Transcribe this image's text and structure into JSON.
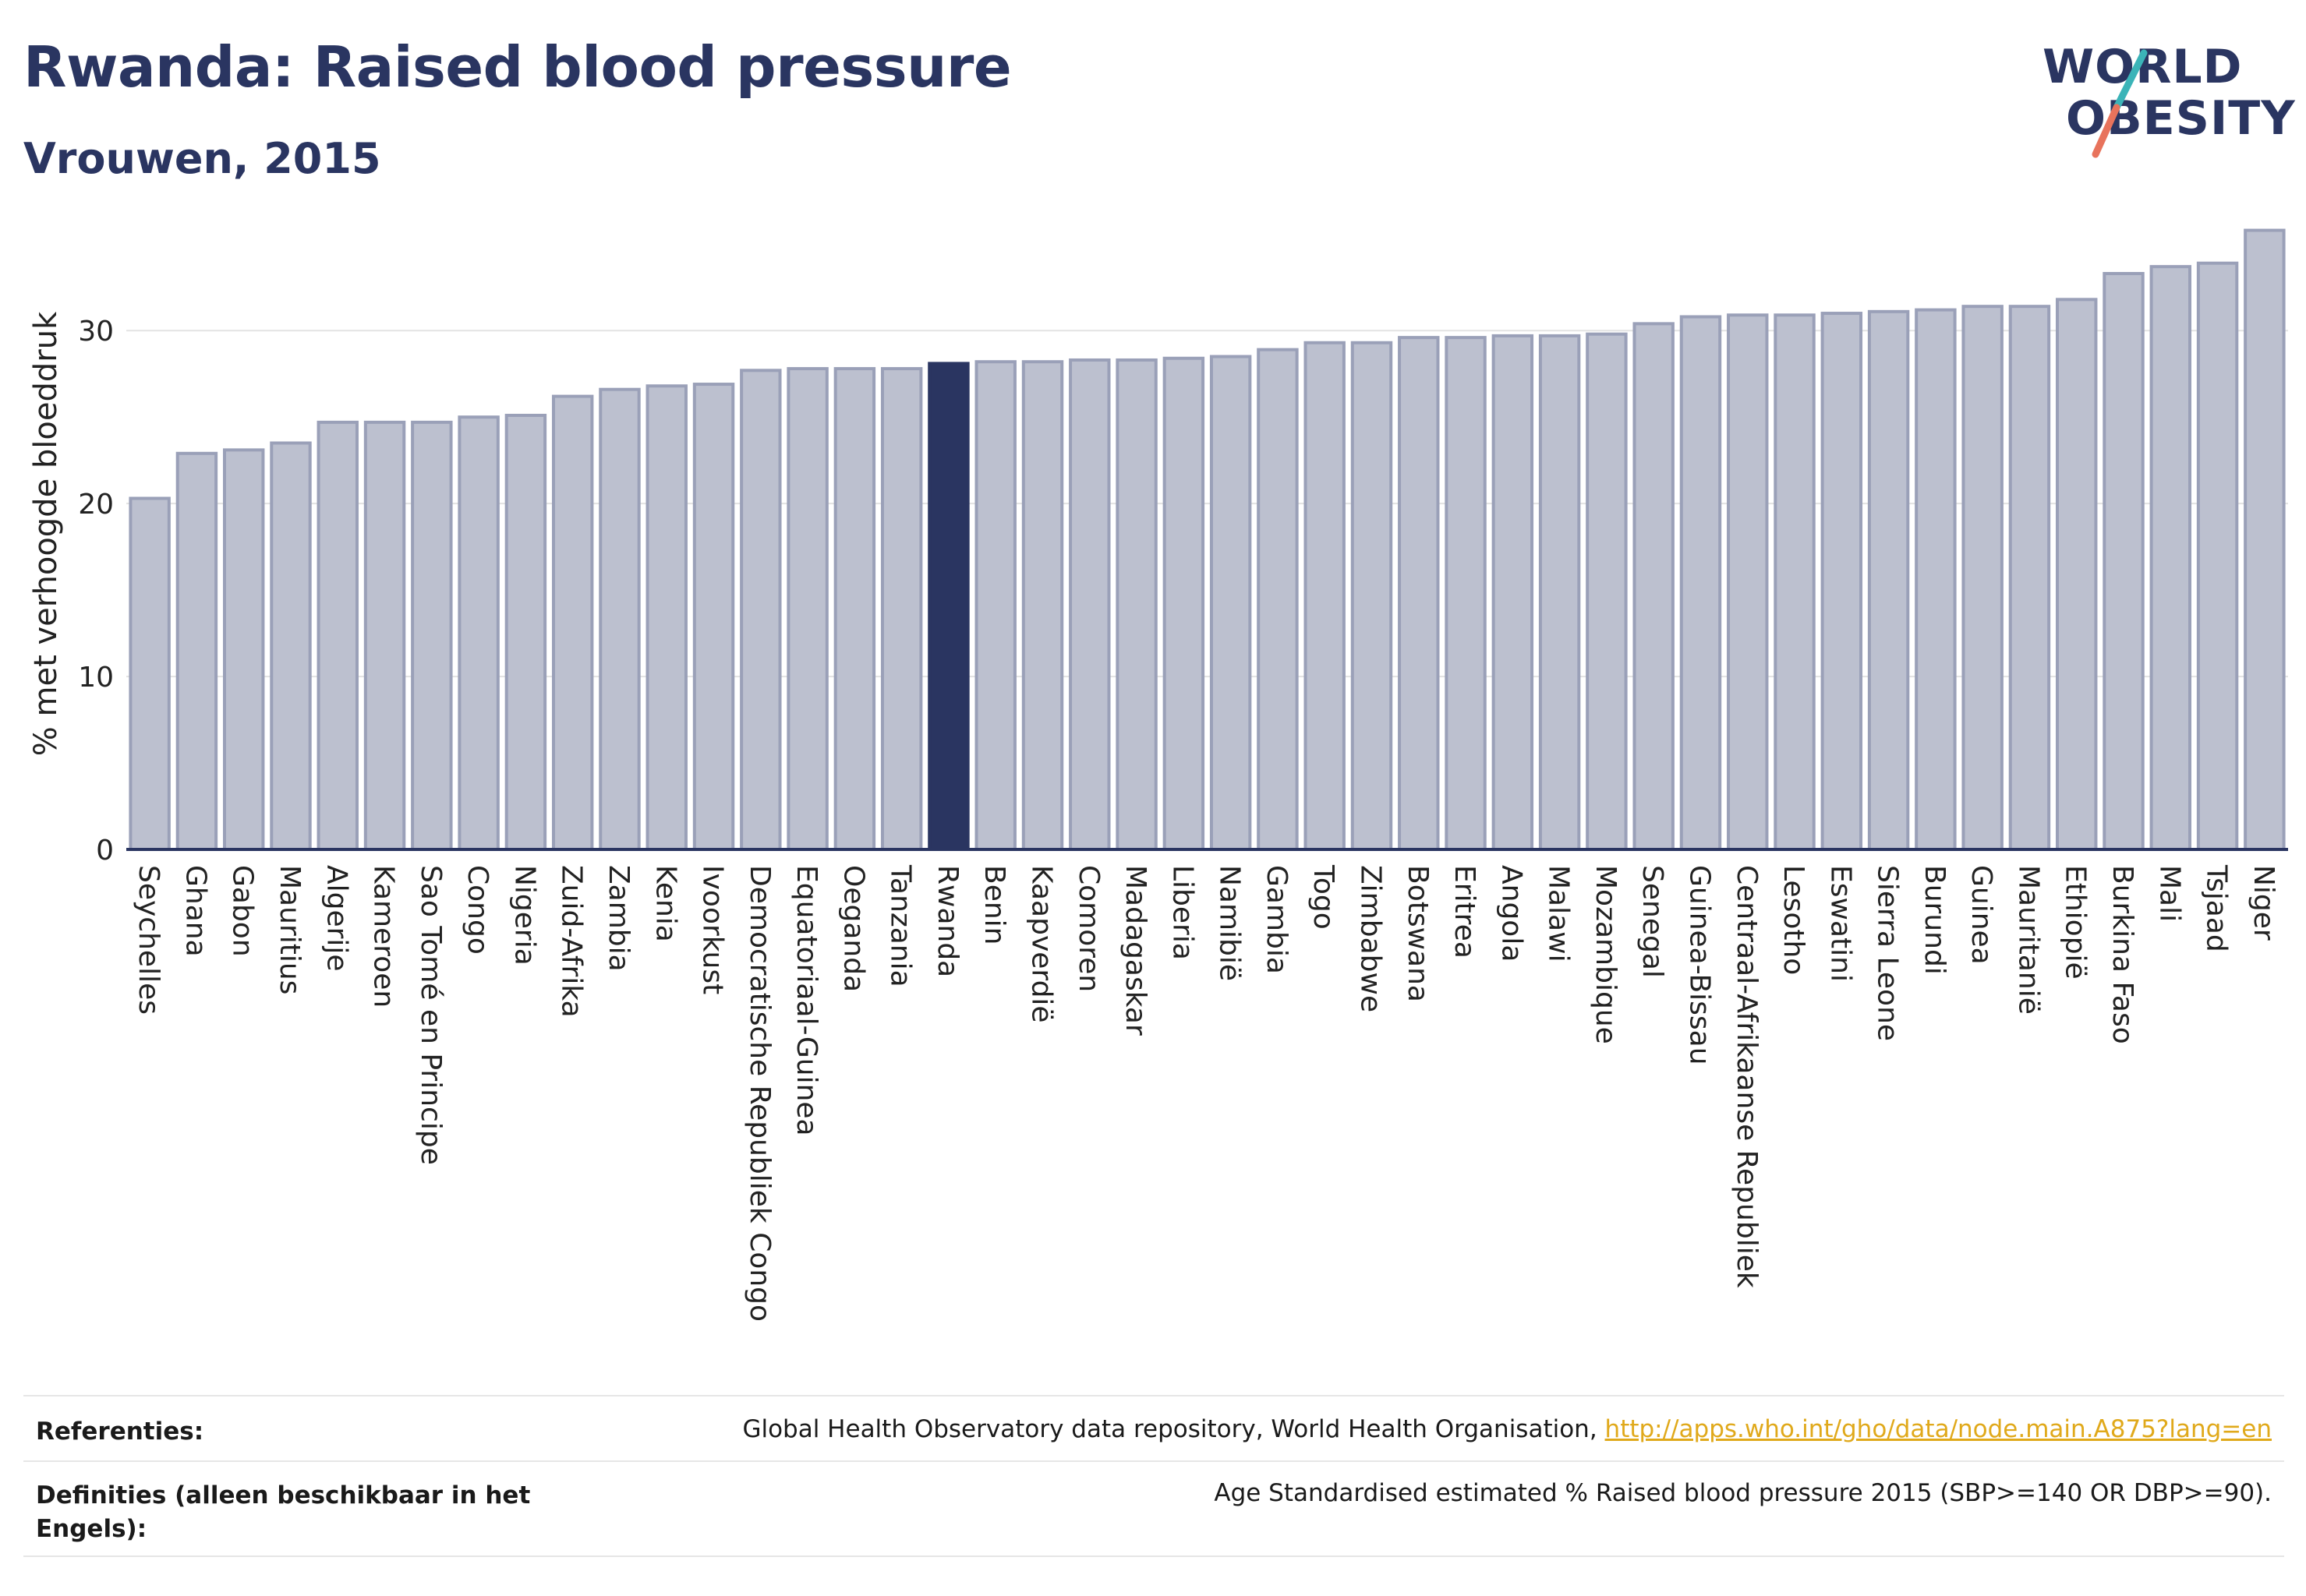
{
  "header": {
    "title": "Rwanda: Raised blood pressure",
    "subtitle": "Vrouwen, 2015"
  },
  "logo": {
    "line1": "WORLD",
    "line2": "OBESITY"
  },
  "colors": {
    "bar": "#bcc0cf",
    "bar_border": "#9aa0b8",
    "highlight": "#2a3561",
    "grid": "#e3e3e3",
    "axis": "#2a3561",
    "link": "#e0a91b",
    "logo_teal": "#3bb4b8",
    "logo_coral": "#e8735c"
  },
  "chart_data": {
    "type": "bar",
    "ylabel": "% met verhoogde bloeddruk",
    "xlabel": "",
    "ylim": [
      0,
      36.5
    ],
    "yticks": [
      0,
      10,
      20,
      30
    ],
    "grid": true,
    "highlight": "Rwanda",
    "categories": [
      "Seychelles",
      "Ghana",
      "Gabon",
      "Mauritius",
      "Algerije",
      "Kameroen",
      "Sao Tomé en Principe",
      "Congo",
      "Nigeria",
      "Zuid-Afrika",
      "Zambia",
      "Kenia",
      "Ivoorkust",
      "Democratische Republiek Congo",
      "Equatoriaal-Guinea",
      "Oeganda",
      "Tanzania",
      "Rwanda",
      "Benin",
      "Kaapverdië",
      "Comoren",
      "Madagaskar",
      "Liberia",
      "Namibië",
      "Gambia",
      "Togo",
      "Zimbabwe",
      "Botswana",
      "Eritrea",
      "Angola",
      "Malawi",
      "Mozambique",
      "Senegal",
      "Guinea-Bissau",
      "Centraal-Afrikaanse Republiek",
      "Lesotho",
      "Eswatini",
      "Sierra Leone",
      "Burundi",
      "Guinea",
      "Mauritanië",
      "Ethiopië",
      "Burkina Faso",
      "Mali",
      "Tsjaad",
      "Niger"
    ],
    "values": [
      20.3,
      22.9,
      23.1,
      23.5,
      24.7,
      24.7,
      24.7,
      25.0,
      25.1,
      26.2,
      26.6,
      26.8,
      26.9,
      27.7,
      27.8,
      27.8,
      27.8,
      28.1,
      28.2,
      28.2,
      28.3,
      28.3,
      28.4,
      28.5,
      28.9,
      29.3,
      29.3,
      29.6,
      29.6,
      29.7,
      29.7,
      29.8,
      30.4,
      30.8,
      30.9,
      30.9,
      31.0,
      31.1,
      31.2,
      31.4,
      31.4,
      31.8,
      33.3,
      33.7,
      33.9,
      35.8
    ]
  },
  "footer": {
    "references_label": "Referenties:",
    "references_text": "Global Health Observatory data repository, World Health Organisation, ",
    "references_link": "http://apps.who.int/gho/data/node.main.A875?lang=en",
    "definitions_label": "Definities (alleen beschikbaar in het Engels):",
    "definitions_text": "Age Standardised estimated % Raised blood pressure 2015 (SBP>=140 OR DBP>=90)."
  }
}
